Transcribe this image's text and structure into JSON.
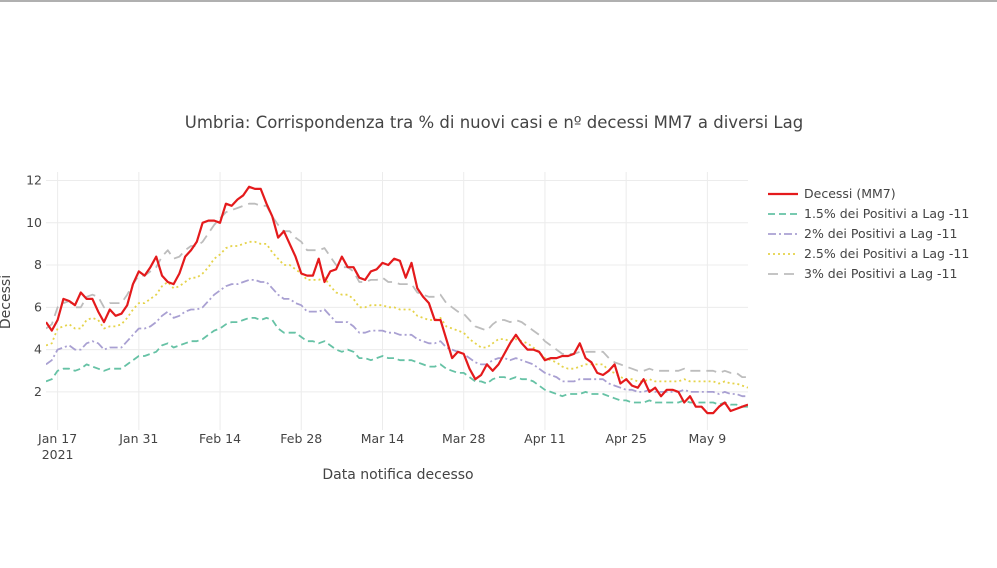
{
  "chart_data": {
    "type": "line",
    "title": "Umbria: Corrispondenza tra % di nuovi casi e nº decessi MM7 a diversi Lag",
    "xlabel": "Data notifica decesso",
    "ylabel": "Decessi",
    "x_ticks": [
      "Jan 17",
      "Jan 31",
      "Feb 14",
      "Feb 28",
      "Mar 14",
      "Mar 28",
      "Apr 11",
      "Apr 25",
      "May 9"
    ],
    "x_year_label": "2021",
    "x_range": [
      "2021-01-15",
      "2021-05-16"
    ],
    "y_ticks": [
      2,
      4,
      6,
      8,
      10,
      12
    ],
    "ylim": [
      0.2,
      12.4
    ],
    "grid": true,
    "legend_position": "right",
    "x_start": "2021-01-15",
    "x_step": "1 day",
    "series": [
      {
        "name": "Decessi (MM7)",
        "color": "#e41a1c",
        "dash": "solid",
        "values": [
          5.3,
          4.9,
          5.4,
          6.4,
          6.3,
          6.1,
          6.7,
          6.4,
          6.4,
          5.8,
          5.3,
          5.9,
          5.6,
          5.7,
          6.1,
          7.1,
          7.7,
          7.5,
          7.9,
          8.4,
          7.5,
          7.2,
          7.1,
          7.6,
          8.4,
          8.7,
          9.1,
          10.0,
          10.1,
          10.1,
          10.0,
          10.9,
          10.8,
          11.1,
          11.3,
          11.7,
          11.6,
          11.6,
          10.9,
          10.3,
          9.3,
          9.6,
          9.0,
          8.4,
          7.6,
          7.5,
          7.5,
          8.3,
          7.2,
          7.7,
          7.8,
          8.4,
          7.9,
          7.9,
          7.4,
          7.3,
          7.7,
          7.8,
          8.1,
          8.0,
          8.3,
          8.2,
          7.4,
          8.1,
          6.9,
          6.5,
          6.2,
          5.4,
          5.4,
          4.5,
          3.6,
          3.9,
          3.8,
          3.1,
          2.6,
          2.8,
          3.3,
          3.0,
          3.3,
          3.8,
          4.3,
          4.7,
          4.3,
          4.0,
          4.0,
          3.9,
          3.5,
          3.6,
          3.6,
          3.7,
          3.7,
          3.8,
          4.3,
          3.6,
          3.4,
          2.9,
          2.8,
          3.0,
          3.3,
          2.4,
          2.6,
          2.3,
          2.2,
          2.6,
          2.0,
          2.2,
          1.8,
          2.1,
          2.1,
          2.0,
          1.5,
          1.8,
          1.3,
          1.3,
          1.0,
          1.0,
          1.3,
          1.5,
          1.1,
          1.2,
          1.3,
          1.4
        ]
      },
      {
        "name": "1.5% dei Positivi a Lag -11",
        "color": "#66c2a5",
        "dash": "7,4",
        "values": [
          2.5,
          2.6,
          3.0,
          3.1,
          3.1,
          3.0,
          3.1,
          3.3,
          3.2,
          3.1,
          3.0,
          3.1,
          3.1,
          3.1,
          3.3,
          3.5,
          3.7,
          3.7,
          3.8,
          3.9,
          4.2,
          4.3,
          4.1,
          4.2,
          4.3,
          4.4,
          4.4,
          4.5,
          4.7,
          4.9,
          5.0,
          5.2,
          5.3,
          5.3,
          5.4,
          5.5,
          5.5,
          5.4,
          5.5,
          5.4,
          5.0,
          4.8,
          4.8,
          4.8,
          4.6,
          4.4,
          4.4,
          4.3,
          4.4,
          4.2,
          4.0,
          3.9,
          4.0,
          3.9,
          3.6,
          3.6,
          3.5,
          3.6,
          3.7,
          3.6,
          3.6,
          3.5,
          3.5,
          3.5,
          3.4,
          3.3,
          3.2,
          3.2,
          3.3,
          3.1,
          3.0,
          2.9,
          2.9,
          2.7,
          2.5,
          2.5,
          2.4,
          2.6,
          2.7,
          2.7,
          2.6,
          2.7,
          2.6,
          2.6,
          2.5,
          2.3,
          2.1,
          2.0,
          1.9,
          1.8,
          1.9,
          1.9,
          1.9,
          2.0,
          1.9,
          1.9,
          1.9,
          1.8,
          1.7,
          1.6,
          1.6,
          1.5,
          1.5,
          1.5,
          1.6,
          1.5,
          1.5,
          1.5,
          1.5,
          1.5,
          1.6,
          1.5,
          1.5,
          1.5,
          1.5,
          1.5,
          1.4,
          1.5,
          1.4,
          1.4,
          1.3,
          1.3
        ]
      },
      {
        "name": "2% dei Positivi a Lag -11",
        "color": "#a9a0d2",
        "dash": "8,3,2,3",
        "values": [
          3.3,
          3.5,
          4.0,
          4.1,
          4.2,
          4.0,
          4.0,
          4.3,
          4.4,
          4.3,
          4.0,
          4.1,
          4.1,
          4.1,
          4.4,
          4.7,
          5.0,
          5.0,
          5.1,
          5.3,
          5.6,
          5.8,
          5.5,
          5.6,
          5.8,
          5.9,
          5.9,
          6.0,
          6.3,
          6.6,
          6.8,
          7.0,
          7.1,
          7.1,
          7.2,
          7.3,
          7.3,
          7.2,
          7.2,
          6.9,
          6.6,
          6.4,
          6.4,
          6.2,
          6.1,
          5.8,
          5.8,
          5.8,
          5.9,
          5.6,
          5.3,
          5.3,
          5.3,
          5.1,
          4.8,
          4.8,
          4.9,
          4.9,
          4.9,
          4.8,
          4.8,
          4.7,
          4.7,
          4.7,
          4.5,
          4.4,
          4.3,
          4.3,
          4.4,
          4.1,
          4.0,
          3.9,
          3.8,
          3.6,
          3.4,
          3.3,
          3.3,
          3.5,
          3.6,
          3.6,
          3.5,
          3.6,
          3.5,
          3.4,
          3.3,
          3.1,
          2.9,
          2.8,
          2.7,
          2.5,
          2.5,
          2.5,
          2.6,
          2.6,
          2.6,
          2.6,
          2.6,
          2.4,
          2.3,
          2.2,
          2.1,
          2.1,
          2.0,
          2.0,
          2.1,
          2.0,
          2.0,
          2.0,
          2.0,
          2.0,
          2.1,
          2.0,
          2.0,
          2.0,
          2.0,
          2.0,
          1.9,
          2.0,
          1.9,
          1.9,
          1.8,
          1.8
        ]
      },
      {
        "name": "2.5% dei Positivi a Lag -11",
        "color": "#e5d34a",
        "dash": "2,3",
        "values": [
          4.2,
          4.3,
          5.0,
          5.1,
          5.2,
          5.0,
          5.0,
          5.4,
          5.5,
          5.4,
          5.0,
          5.1,
          5.1,
          5.2,
          5.5,
          5.9,
          6.2,
          6.2,
          6.4,
          6.6,
          7.0,
          7.2,
          6.9,
          7.0,
          7.2,
          7.4,
          7.4,
          7.6,
          7.9,
          8.3,
          8.5,
          8.8,
          8.9,
          8.9,
          9.0,
          9.1,
          9.1,
          9.0,
          9.0,
          8.6,
          8.3,
          8.0,
          8.0,
          7.8,
          7.6,
          7.3,
          7.3,
          7.3,
          7.4,
          7.0,
          6.7,
          6.6,
          6.6,
          6.4,
          6.0,
          6.0,
          6.1,
          6.1,
          6.1,
          6.0,
          6.0,
          5.9,
          5.9,
          5.9,
          5.6,
          5.5,
          5.4,
          5.4,
          5.5,
          5.1,
          5.0,
          4.9,
          4.8,
          4.5,
          4.3,
          4.1,
          4.1,
          4.3,
          4.5,
          4.5,
          4.4,
          4.5,
          4.4,
          4.3,
          4.1,
          3.9,
          3.6,
          3.5,
          3.4,
          3.2,
          3.1,
          3.1,
          3.2,
          3.3,
          3.3,
          3.3,
          3.3,
          3.0,
          2.9,
          2.7,
          2.6,
          2.6,
          2.5,
          2.5,
          2.6,
          2.5,
          2.5,
          2.5,
          2.5,
          2.5,
          2.6,
          2.5,
          2.5,
          2.5,
          2.5,
          2.5,
          2.4,
          2.5,
          2.4,
          2.4,
          2.3,
          2.2
        ]
      },
      {
        "name": "3% dei Positivi a Lag -11",
        "color": "#bdbdbd",
        "dash": "10,6",
        "values": [
          5.0,
          5.2,
          6.0,
          6.2,
          6.3,
          6.0,
          6.0,
          6.5,
          6.6,
          6.5,
          6.0,
          6.2,
          6.2,
          6.2,
          6.6,
          7.1,
          7.5,
          7.5,
          7.7,
          7.9,
          8.4,
          8.7,
          8.3,
          8.4,
          8.7,
          8.9,
          8.9,
          9.1,
          9.5,
          9.9,
          10.2,
          10.5,
          10.6,
          10.7,
          10.8,
          10.9,
          10.9,
          10.8,
          10.8,
          10.3,
          9.9,
          9.6,
          9.6,
          9.3,
          9.1,
          8.7,
          8.7,
          8.7,
          8.8,
          8.4,
          8.0,
          7.9,
          7.9,
          7.7,
          7.2,
          7.2,
          7.3,
          7.3,
          7.4,
          7.2,
          7.2,
          7.1,
          7.1,
          7.1,
          6.7,
          6.6,
          6.5,
          6.5,
          6.6,
          6.2,
          6.0,
          5.8,
          5.7,
          5.4,
          5.1,
          5.0,
          4.9,
          5.2,
          5.4,
          5.4,
          5.3,
          5.4,
          5.3,
          5.1,
          4.9,
          4.7,
          4.4,
          4.2,
          4.0,
          3.8,
          3.8,
          3.8,
          3.9,
          3.9,
          3.9,
          3.9,
          3.9,
          3.6,
          3.4,
          3.3,
          3.2,
          3.1,
          3.0,
          3.0,
          3.1,
          3.0,
          3.0,
          3.0,
          3.0,
          3.0,
          3.1,
          3.0,
          3.0,
          3.0,
          3.0,
          3.0,
          2.9,
          3.0,
          2.9,
          2.9,
          2.7,
          2.7
        ]
      }
    ]
  }
}
